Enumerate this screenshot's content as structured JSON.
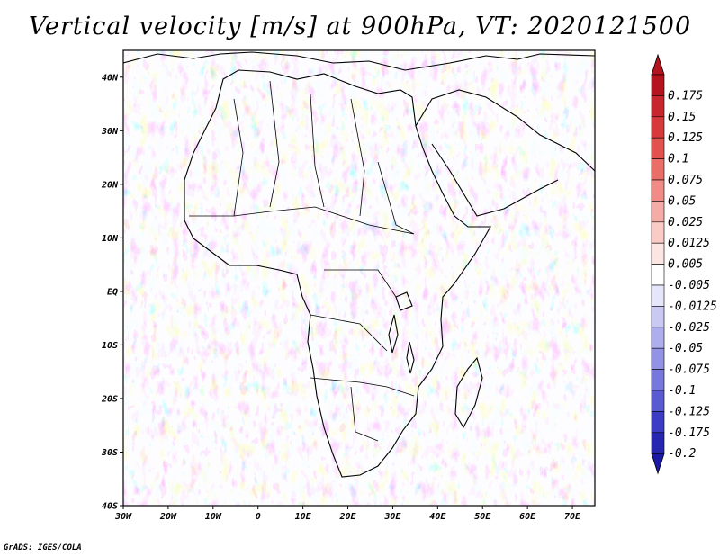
{
  "title": "Vertical velocity [m/s] at 900hPa, VT: 2020121500",
  "footer": "GrADS: IGES/COLA",
  "map": {
    "projection": "lat-lon",
    "lon_range": [
      -30,
      75
    ],
    "lat_range": [
      -40,
      45
    ],
    "lon_ticks": [
      {
        "lon": -30,
        "label": "30W"
      },
      {
        "lon": -20,
        "label": "20W"
      },
      {
        "lon": -10,
        "label": "10W"
      },
      {
        "lon": 0,
        "label": "0"
      },
      {
        "lon": 10,
        "label": "10E"
      },
      {
        "lon": 20,
        "label": "20E"
      },
      {
        "lon": 30,
        "label": "30E"
      },
      {
        "lon": 40,
        "label": "40E"
      },
      {
        "lon": 50,
        "label": "50E"
      },
      {
        "lon": 60,
        "label": "60E"
      },
      {
        "lon": 70,
        "label": "70E"
      }
    ],
    "lat_ticks": [
      {
        "lat": 40,
        "label": "40N"
      },
      {
        "lat": 30,
        "label": "30N"
      },
      {
        "lat": 20,
        "label": "20N"
      },
      {
        "lat": 10,
        "label": "10N"
      },
      {
        "lat": 0,
        "label": "EQ"
      },
      {
        "lat": -10,
        "label": "10S"
      },
      {
        "lat": -20,
        "label": "20S"
      },
      {
        "lat": -30,
        "label": "30S"
      },
      {
        "lat": -40,
        "label": "40S"
      }
    ]
  },
  "colorbar": {
    "levels": [
      {
        "label": "0.175",
        "color": "#b5141e"
      },
      {
        "label": "0.15",
        "color": "#c8262d"
      },
      {
        "label": "0.125",
        "color": "#d83a3c"
      },
      {
        "label": "0.1",
        "color": "#e2524f"
      },
      {
        "label": "0.075",
        "color": "#ea6d67"
      },
      {
        "label": "0.05",
        "color": "#f08b85"
      },
      {
        "label": "0.025",
        "color": "#f5aba6"
      },
      {
        "label": "0.0125",
        "color": "#f9cac6"
      },
      {
        "label": "0.005",
        "color": "#fce6e4"
      },
      {
        "label": "-0.005",
        "color": "#ffffff"
      },
      {
        "label": "-0.0125",
        "color": "#e6e6fb"
      },
      {
        "label": "-0.025",
        "color": "#c9c9f4"
      },
      {
        "label": "-0.05",
        "color": "#aeaeee"
      },
      {
        "label": "-0.075",
        "color": "#9393e6"
      },
      {
        "label": "-0.1",
        "color": "#7777dd"
      },
      {
        "label": "-0.125",
        "color": "#5a5ad2"
      },
      {
        "label": "-0.175",
        "color": "#3c3cc4"
      },
      {
        "label": "-0.2",
        "color": "#2626b0"
      }
    ],
    "bottom_color": "#1a1aa6"
  }
}
